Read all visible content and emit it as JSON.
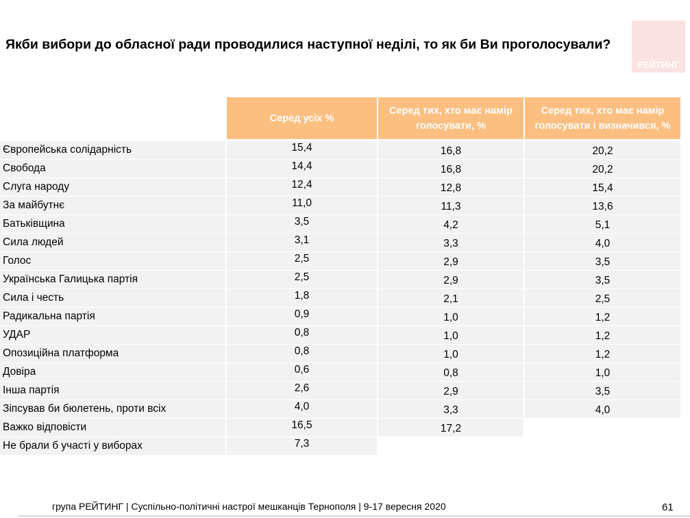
{
  "title": "Якби вибори до обласної ради проводилися наступної неділі, то як би Ви проголосували?",
  "logo_text": "РЕЙТИНГ",
  "columns": [
    "Серед усіх %",
    "Серед тих, хто має намір\nголосувати, %",
    "Серед тих, хто має намір\nголосувати і визначився, %"
  ],
  "rows": [
    {
      "name": "Європейська солідарність",
      "v": [
        "15,4",
        "16,8",
        "20,2"
      ]
    },
    {
      "name": "Свобода",
      "v": [
        "14,4",
        "16,8",
        "20,2"
      ]
    },
    {
      "name": "Слуга народу",
      "v": [
        "12,4",
        "12,8",
        "15,4"
      ]
    },
    {
      "name": "За майбутнє",
      "v": [
        "11,0",
        "11,3",
        "13,6"
      ]
    },
    {
      "name": "Батьківщина",
      "v": [
        "3,5",
        "4,2",
        "5,1"
      ]
    },
    {
      "name": "Сила людей",
      "v": [
        "3,1",
        "3,3",
        "4,0"
      ]
    },
    {
      "name": "Голос",
      "v": [
        "2,5",
        "2,9",
        "3,5"
      ]
    },
    {
      "name": "Українська Галицька партія",
      "v": [
        "2,5",
        "2,9",
        "3,5"
      ]
    },
    {
      "name": "Сила і честь",
      "v": [
        "1,8",
        "2,1",
        "2,5"
      ]
    },
    {
      "name": "Радикальна партія",
      "v": [
        "0,9",
        "1,0",
        "1,2"
      ]
    },
    {
      "name": "УДАР",
      "v": [
        "0,8",
        "1,0",
        "1,2"
      ]
    },
    {
      "name": "Опозиційна платформа",
      "v": [
        "0,8",
        "1,0",
        "1,2"
      ]
    },
    {
      "name": "Довіра",
      "v": [
        "0,6",
        "0,8",
        "1,0"
      ]
    },
    {
      "name": "Інша партія",
      "v": [
        "2,6",
        "2,9",
        "3,5"
      ]
    },
    {
      "name": "Зіпсував би бюлетень, проти всіх",
      "v": [
        "4,0",
        "3,3",
        "4,0"
      ]
    },
    {
      "name": "Важко відповісти",
      "v": [
        "16,5",
        "17,2",
        null
      ]
    },
    {
      "name": "Не брали б участі у виборах",
      "v": [
        "7,3",
        null,
        null
      ]
    }
  ],
  "footer": "група РЕЙТИНГ  | Суспільно-політичні настрої мешканців Тернополя | 9-17 вересня 2020",
  "page_number": "61",
  "colors": {
    "header_bg": "#fbbf81",
    "row_bg": "#f2f2f2",
    "logo_bg": "#fbe2e2"
  }
}
